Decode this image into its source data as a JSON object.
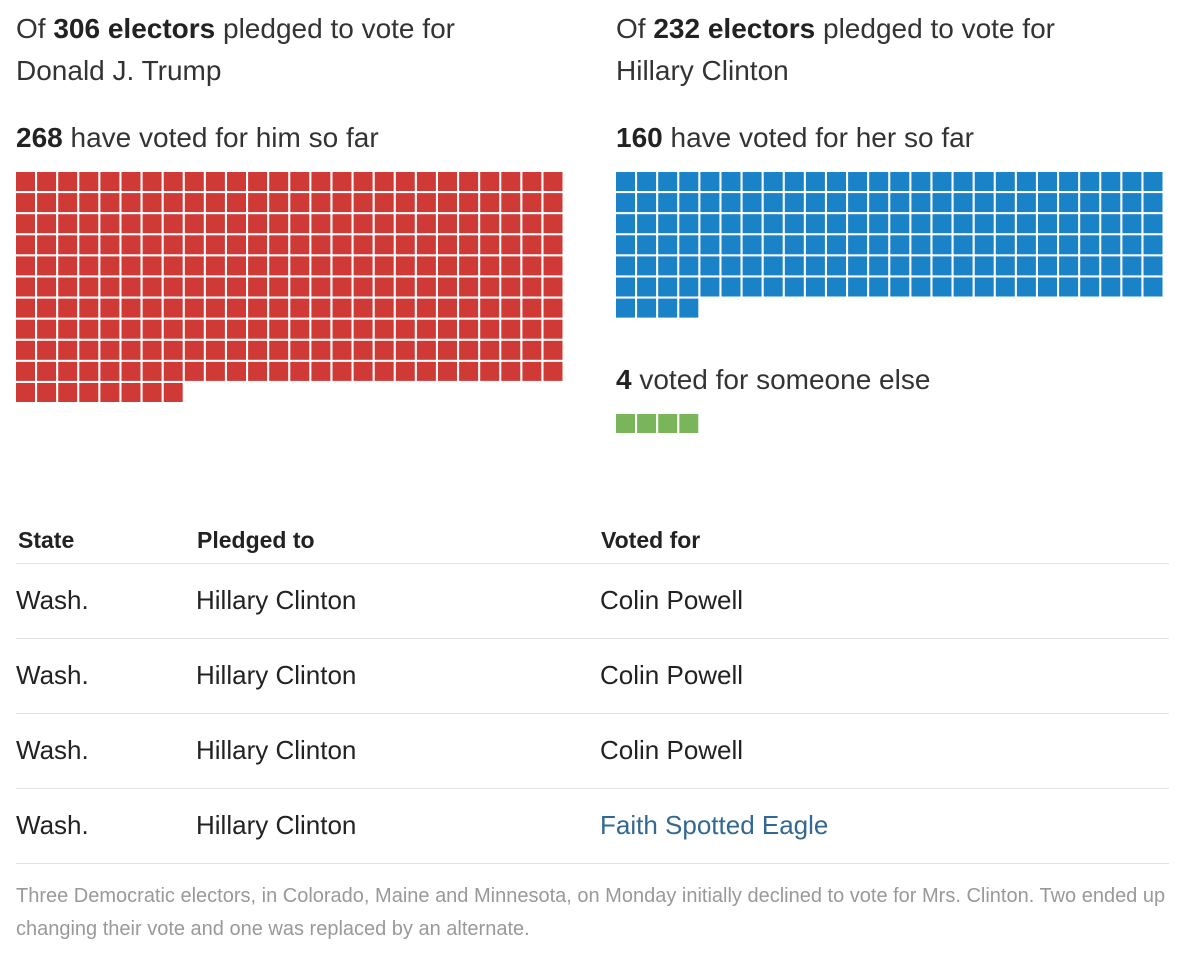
{
  "panels": [
    {
      "prefix": "Of",
      "pledged": "306 electors",
      "suffix": "pledged to vote for",
      "candidate": "Donald J. Trump",
      "voted_count": 268,
      "voted_text": "have voted for him so far",
      "color": "#d03a36"
    },
    {
      "prefix": "Of",
      "pledged": "232 electors",
      "suffix": "pledged to vote for",
      "candidate": "Hillary Clinton",
      "voted_count": 160,
      "voted_text": "have voted for her so far",
      "color": "#1a82c6"
    }
  ],
  "other": {
    "count": 4,
    "text": "voted for someone else",
    "color": "#7ab55c"
  },
  "table": {
    "header": [
      "State",
      "Pledged to",
      "Voted for"
    ],
    "rows": [
      [
        "Wash.",
        "Hillary Clinton",
        "Colin Powell"
      ],
      [
        "Wash.",
        "Hillary Clinton",
        "Colin Powell"
      ],
      [
        "Wash.",
        "Hillary Clinton",
        "Colin Powell"
      ],
      [
        "Wash.",
        "Hillary Clinton",
        "Faith Spotted Eagle"
      ]
    ]
  },
  "note": "Three Democratic electors, in Colorado, Maine and Minnesota, on Monday initially declined to vote for Mrs. Clinton. Two ended up changing their vote and one was replaced by an alternate."
}
